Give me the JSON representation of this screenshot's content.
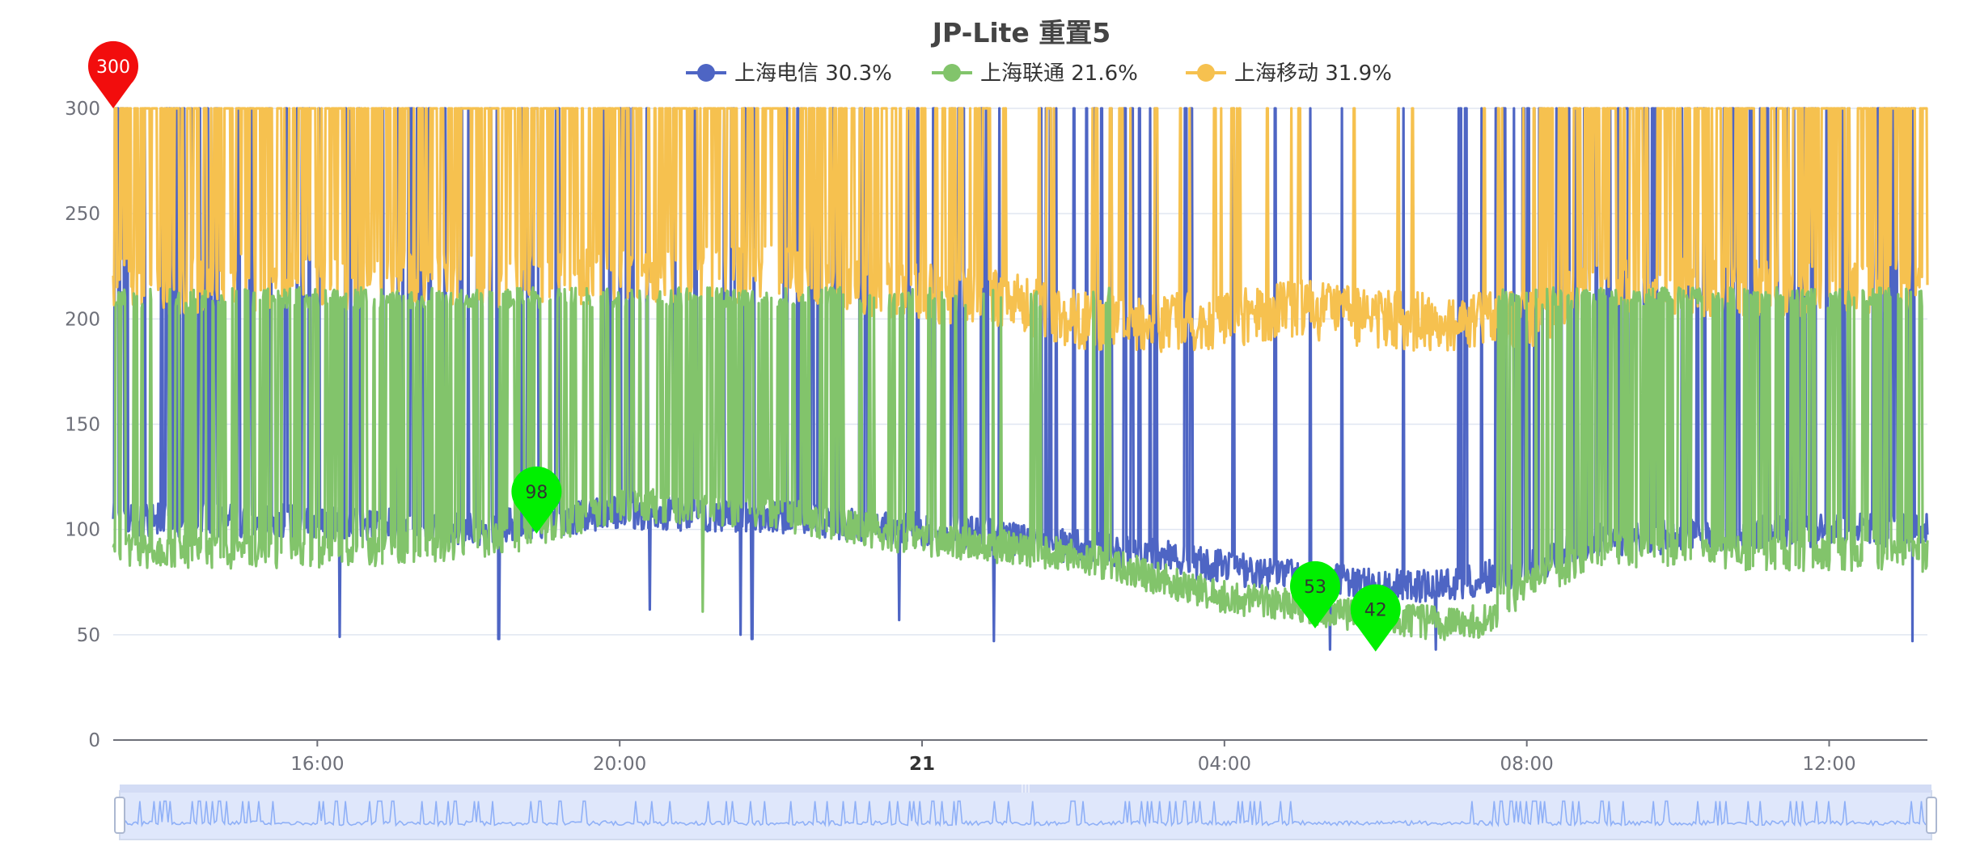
{
  "chart_data": {
    "type": "line",
    "title": "JP-Lite 重置5",
    "ylim": [
      0,
      300
    ],
    "y_ticks": [
      0,
      50,
      100,
      150,
      200,
      250,
      300
    ],
    "x_range_hours": [
      13.3,
      37.3
    ],
    "x_ticks": [
      {
        "label": "16:00",
        "hour": 16,
        "bold": false
      },
      {
        "label": "20:00",
        "hour": 20,
        "bold": false
      },
      {
        "label": "21",
        "hour": 24,
        "bold": true
      },
      {
        "label": "04:00",
        "hour": 28,
        "bold": false
      },
      {
        "label": "08:00",
        "hour": 32,
        "bold": false
      },
      {
        "label": "12:00",
        "hour": 36,
        "bold": false
      }
    ],
    "grid": true,
    "legend_position": "top-center",
    "series": [
      {
        "name": "上海电信",
        "loss": "30.3%",
        "color": "#4e65c4",
        "profile": {
          "hours": [
            13.3,
            16,
            18,
            20,
            22,
            24,
            25,
            26,
            27,
            28,
            29,
            30,
            31,
            32,
            33,
            36,
            37.3
          ],
          "base": [
            105,
            104,
            100,
            108,
            106,
            100,
            97,
            92,
            88,
            82,
            77,
            74,
            73,
            82,
            95,
            100,
            100
          ],
          "spike_rate": [
            0.16,
            0.16,
            0.12,
            0.06,
            0.07,
            0.05,
            0.06,
            0.1,
            0.12,
            0.08,
            0.03,
            0.03,
            0.06,
            0.18,
            0.1,
            0.1,
            0.1
          ]
        },
        "dips": [
          [
            16.3,
            49
          ],
          [
            18.4,
            48
          ],
          [
            20.4,
            62
          ],
          [
            21.6,
            50
          ],
          [
            21.75,
            48
          ],
          [
            23.7,
            57
          ],
          [
            24.95,
            47
          ],
          [
            29.4,
            43
          ],
          [
            30.8,
            43
          ],
          [
            37.1,
            47
          ]
        ]
      },
      {
        "name": "上海联通",
        "loss": "21.6%",
        "color": "#82c46b",
        "profile": {
          "hours": [
            13.3,
            16,
            18,
            19,
            20,
            22,
            24,
            25,
            26,
            27,
            28,
            29,
            30,
            31,
            31.5,
            32,
            33,
            36,
            37.3
          ],
          "base": [
            90,
            89,
            93,
            100,
            112,
            108,
            95,
            92,
            88,
            78,
            68,
            63,
            58,
            55,
            57,
            74,
            90,
            88,
            88
          ],
          "spike_rate": [
            0.22,
            0.3,
            0.3,
            0.26,
            0.28,
            0.18,
            0.1,
            0.05,
            0.02,
            0.01,
            0.0,
            0.0,
            0.0,
            0.0,
            0.05,
            0.2,
            0.3,
            0.3,
            0.3
          ]
        },
        "spike_top": [
          205,
          215
        ],
        "dips": [
          [
            21.1,
            61
          ]
        ]
      },
      {
        "name": "上海移动",
        "loss": "31.9%",
        "color": "#f6c14f",
        "profile": {
          "hours": [
            13.3,
            16,
            20,
            22,
            24,
            25,
            26,
            27,
            28,
            29,
            30,
            31,
            32,
            33,
            36,
            37.3
          ],
          "base": [
            215,
            218,
            220,
            222,
            212,
            210,
            200,
            198,
            200,
            205,
            200,
            198,
            200,
            215,
            215,
            215
          ],
          "spike_rate": [
            0.4,
            0.45,
            0.4,
            0.36,
            0.3,
            0.14,
            0.05,
            0.05,
            0.05,
            0.04,
            0.03,
            0.03,
            0.1,
            0.35,
            0.4,
            0.4
          ]
        }
      }
    ],
    "markers": [
      {
        "label": "300",
        "hour": 13.3,
        "value": 300,
        "color": "#f20d0d",
        "text_color": "#ffffff"
      },
      {
        "label": "98",
        "hour": 18.9,
        "value": 98,
        "color": "#00f000",
        "text_color": "#333333"
      },
      {
        "label": "53",
        "hour": 29.2,
        "value": 53,
        "color": "#00f000",
        "text_color": "#333333"
      },
      {
        "label": "42",
        "hour": 30.0,
        "value": 42,
        "color": "#00f000",
        "text_color": "#333333"
      }
    ],
    "data_zoom": {
      "start_percent": 0,
      "end_percent": 100
    }
  }
}
